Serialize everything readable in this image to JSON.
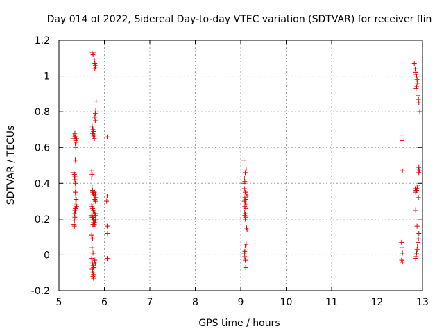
{
  "colors": {
    "point": "#e00000",
    "grid": "#a0a0a0",
    "axis": "#000000",
    "background": "#ffffff"
  },
  "chart_data": {
    "type": "scatter",
    "title": "Day 014 of 2022, Sidereal Day-to-day VTEC variation (SDTVAR) for receiver flin",
    "xlabel": "GPS time / hours",
    "ylabel": "SDTVAR / TECUs",
    "xlim": [
      5,
      13
    ],
    "ylim": [
      -0.2,
      1.2
    ],
    "xticks": [
      5,
      6,
      7,
      8,
      9,
      10,
      11,
      12,
      13
    ],
    "xtick_labels": [
      "5",
      "6",
      "7",
      "8",
      "9",
      "10",
      "11",
      "12",
      "13"
    ],
    "yticks": [
      -0.2,
      0,
      0.2,
      0.4,
      0.6,
      0.8,
      1.0,
      1.2
    ],
    "ytick_labels": [
      "-0.2",
      "0",
      "0.2",
      "0.4",
      "0.6",
      "0.8",
      "1",
      "1.2"
    ],
    "grid": true,
    "marker": "+",
    "series": [
      {
        "name": "SDTVAR",
        "points": [
          [
            5.32,
            0.67
          ],
          [
            5.33,
            0.65
          ],
          [
            5.34,
            0.66
          ],
          [
            5.35,
            0.68
          ],
          [
            5.36,
            0.66
          ],
          [
            5.37,
            0.64
          ],
          [
            5.36,
            0.62
          ],
          [
            5.37,
            0.6
          ],
          [
            5.38,
            0.63
          ],
          [
            5.39,
            0.65
          ],
          [
            5.36,
            0.53
          ],
          [
            5.37,
            0.52
          ],
          [
            5.33,
            0.46
          ],
          [
            5.34,
            0.45
          ],
          [
            5.35,
            0.44
          ],
          [
            5.34,
            0.43
          ],
          [
            5.35,
            0.42
          ],
          [
            5.36,
            0.4
          ],
          [
            5.37,
            0.38
          ],
          [
            5.36,
            0.35
          ],
          [
            5.37,
            0.33
          ],
          [
            5.38,
            0.31
          ],
          [
            5.37,
            0.29
          ],
          [
            5.38,
            0.28
          ],
          [
            5.39,
            0.27
          ],
          [
            5.36,
            0.26
          ],
          [
            5.35,
            0.25
          ],
          [
            5.36,
            0.24
          ],
          [
            5.34,
            0.23
          ],
          [
            5.35,
            0.21
          ],
          [
            5.34,
            0.19
          ],
          [
            5.33,
            0.17
          ],
          [
            5.34,
            0.16
          ],
          [
            5.73,
            1.13
          ],
          [
            5.75,
            1.12
          ],
          [
            5.77,
            1.13
          ],
          [
            5.78,
            1.09
          ],
          [
            5.79,
            1.07
          ],
          [
            5.8,
            1.06
          ],
          [
            5.81,
            1.05
          ],
          [
            5.79,
            1.04
          ],
          [
            5.8,
            1.05
          ],
          [
            5.82,
            0.86
          ],
          [
            5.81,
            0.81
          ],
          [
            5.8,
            0.79
          ],
          [
            5.79,
            0.77
          ],
          [
            5.8,
            0.75
          ],
          [
            5.73,
            0.72
          ],
          [
            5.74,
            0.71
          ],
          [
            5.75,
            0.7
          ],
          [
            5.76,
            0.69
          ],
          [
            5.74,
            0.68
          ],
          [
            5.75,
            0.67
          ],
          [
            5.76,
            0.66
          ],
          [
            5.78,
            0.65
          ],
          [
            5.79,
            0.67
          ],
          [
            5.72,
            0.47
          ],
          [
            5.73,
            0.45
          ],
          [
            5.72,
            0.43
          ],
          [
            5.73,
            0.38
          ],
          [
            5.74,
            0.36
          ],
          [
            5.74,
            0.35
          ],
          [
            5.75,
            0.34
          ],
          [
            5.76,
            0.34
          ],
          [
            5.77,
            0.33
          ],
          [
            5.78,
            0.35
          ],
          [
            5.79,
            0.33
          ],
          [
            5.8,
            0.34
          ],
          [
            5.81,
            0.32
          ],
          [
            5.79,
            0.31
          ],
          [
            5.8,
            0.3
          ],
          [
            5.72,
            0.28
          ],
          [
            5.73,
            0.27
          ],
          [
            5.74,
            0.26
          ],
          [
            5.75,
            0.25
          ],
          [
            5.76,
            0.24
          ],
          [
            5.77,
            0.25
          ],
          [
            5.78,
            0.24
          ],
          [
            5.79,
            0.23
          ],
          [
            5.8,
            0.22
          ],
          [
            5.81,
            0.23
          ],
          [
            5.72,
            0.22
          ],
          [
            5.73,
            0.21
          ],
          [
            5.74,
            0.21
          ],
          [
            5.75,
            0.2
          ],
          [
            5.76,
            0.2
          ],
          [
            5.77,
            0.21
          ],
          [
            5.78,
            0.19
          ],
          [
            5.79,
            0.18
          ],
          [
            5.8,
            0.19
          ],
          [
            5.81,
            0.2
          ],
          [
            5.75,
            0.17
          ],
          [
            5.76,
            0.18
          ],
          [
            5.77,
            0.16
          ],
          [
            5.78,
            0.17
          ],
          [
            5.72,
            0.11
          ],
          [
            5.73,
            0.1
          ],
          [
            5.74,
            0.09
          ],
          [
            5.73,
            0.04
          ],
          [
            5.75,
            0.01
          ],
          [
            5.72,
            -0.02
          ],
          [
            5.73,
            -0.04
          ],
          [
            5.74,
            -0.05
          ],
          [
            5.75,
            -0.06
          ],
          [
            5.76,
            -0.07
          ],
          [
            5.77,
            -0.05
          ],
          [
            5.78,
            -0.04
          ],
          [
            5.79,
            -0.03
          ],
          [
            5.8,
            -0.05
          ],
          [
            5.73,
            -0.08
          ],
          [
            5.74,
            -0.09
          ],
          [
            5.75,
            -0.1
          ],
          [
            5.76,
            -0.11
          ],
          [
            5.75,
            -0.12
          ],
          [
            5.76,
            -0.13
          ],
          [
            6.06,
            0.66
          ],
          [
            6.06,
            0.33
          ],
          [
            6.05,
            0.3
          ],
          [
            6.06,
            0.16
          ],
          [
            6.07,
            0.12
          ],
          [
            6.06,
            -0.02
          ],
          [
            9.07,
            0.53
          ],
          [
            9.12,
            0.48
          ],
          [
            9.1,
            0.46
          ],
          [
            9.08,
            0.43
          ],
          [
            9.09,
            0.41
          ],
          [
            9.07,
            0.4
          ],
          [
            9.08,
            0.37
          ],
          [
            9.1,
            0.35
          ],
          [
            9.12,
            0.34
          ],
          [
            9.14,
            0.33
          ],
          [
            9.09,
            0.32
          ],
          [
            9.11,
            0.31
          ],
          [
            9.08,
            0.3
          ],
          [
            9.1,
            0.29
          ],
          [
            9.12,
            0.28
          ],
          [
            9.09,
            0.27
          ],
          [
            9.11,
            0.26
          ],
          [
            9.08,
            0.24
          ],
          [
            9.1,
            0.23
          ],
          [
            9.09,
            0.22
          ],
          [
            9.11,
            0.21
          ],
          [
            9.1,
            0.2
          ],
          [
            9.13,
            0.15
          ],
          [
            9.14,
            0.14
          ],
          [
            9.12,
            0.06
          ],
          [
            9.1,
            0.05
          ],
          [
            9.09,
            0.02
          ],
          [
            9.08,
            0.01
          ],
          [
            9.09,
            -0.01
          ],
          [
            9.1,
            -0.03
          ],
          [
            9.11,
            -0.07
          ],
          [
            12.55,
            0.67
          ],
          [
            12.55,
            0.64
          ],
          [
            12.55,
            0.57
          ],
          [
            12.55,
            0.48
          ],
          [
            12.56,
            0.47
          ],
          [
            12.54,
            0.07
          ],
          [
            12.55,
            0.04
          ],
          [
            12.56,
            0.01
          ],
          [
            12.54,
            -0.03
          ],
          [
            12.55,
            -0.04
          ],
          [
            12.56,
            -0.04
          ],
          [
            12.82,
            1.07
          ],
          [
            12.84,
            1.04
          ],
          [
            12.85,
            1.02
          ],
          [
            12.86,
            1.01
          ],
          [
            12.87,
            1.0
          ],
          [
            12.88,
            0.98
          ],
          [
            12.89,
            0.96
          ],
          [
            12.87,
            0.94
          ],
          [
            12.86,
            0.93
          ],
          [
            12.9,
            0.89
          ],
          [
            12.91,
            0.87
          ],
          [
            12.92,
            0.85
          ],
          [
            12.94,
            0.8
          ],
          [
            12.92,
            0.49
          ],
          [
            12.91,
            0.48
          ],
          [
            12.93,
            0.47
          ],
          [
            12.92,
            0.46
          ],
          [
            12.9,
            0.39
          ],
          [
            12.89,
            0.38
          ],
          [
            12.88,
            0.37
          ],
          [
            12.87,
            0.36
          ],
          [
            12.86,
            0.36
          ],
          [
            12.85,
            0.35
          ],
          [
            12.84,
            0.37
          ],
          [
            12.91,
            0.32
          ],
          [
            12.85,
            0.25
          ],
          [
            12.88,
            0.16
          ],
          [
            12.92,
            0.12
          ],
          [
            12.91,
            0.09
          ],
          [
            12.9,
            0.07
          ],
          [
            12.89,
            0.05
          ],
          [
            12.88,
            0.03
          ],
          [
            12.87,
            0.01
          ],
          [
            12.86,
            -0.01
          ],
          [
            12.85,
            -0.02
          ]
        ]
      }
    ]
  }
}
